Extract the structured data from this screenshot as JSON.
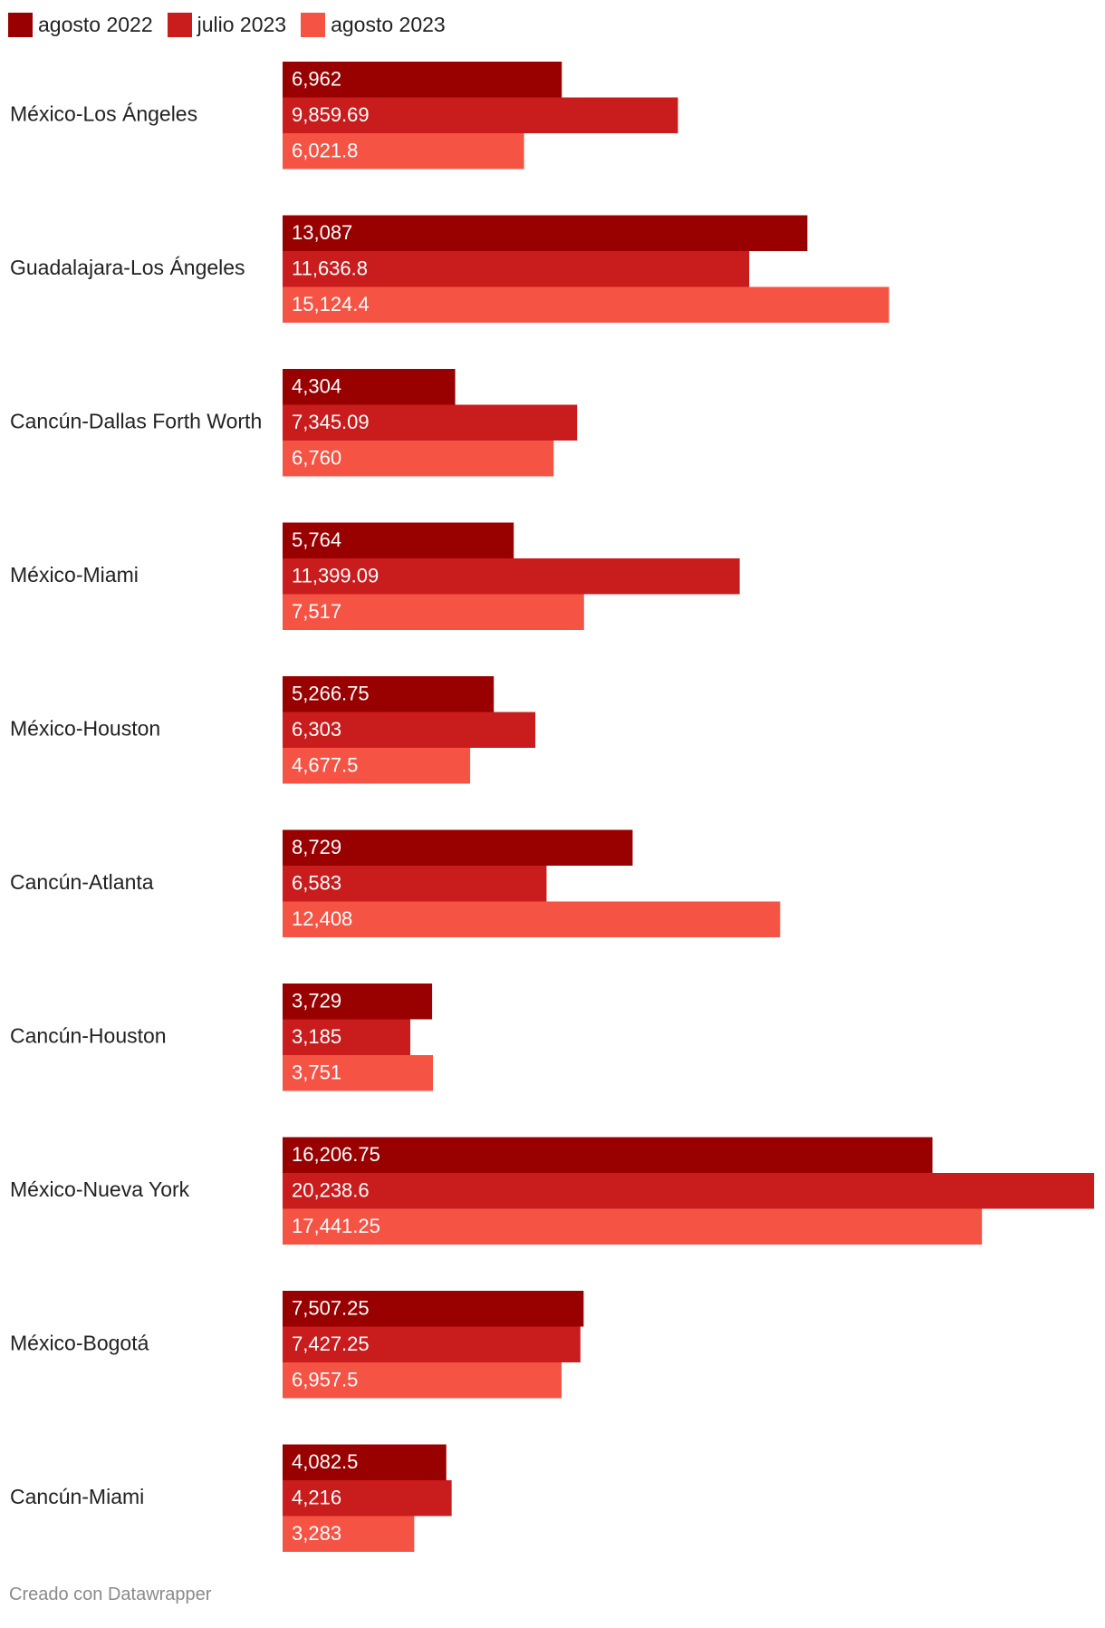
{
  "chart_data": {
    "type": "bar",
    "orientation": "horizontal",
    "categories": [
      "México-Los Ángeles",
      "Guadalajara-Los Ángeles",
      "Cancún-Dallas Forth Worth",
      "México-Miami",
      "México-Houston",
      "Cancún-Atlanta",
      "Cancún-Houston",
      "México-Nueva York",
      "México-Bogotá",
      "Cancún-Miami"
    ],
    "series": [
      {
        "name": "agosto 2022",
        "color": "#990000",
        "values": [
          6962,
          13087,
          4304,
          5764,
          5266.75,
          8729,
          3729,
          16206.75,
          7507.25,
          4082.5
        ],
        "labels": [
          "6,962",
          "13,087",
          "4,304",
          "5,764",
          "5,266.75",
          "8,729",
          "3,729",
          "16,206.75",
          "7,507.25",
          "4,082.5"
        ]
      },
      {
        "name": "julio 2023",
        "color": "#c91c1c",
        "values": [
          9859.69,
          11636.8,
          7345.09,
          11399.09,
          6303,
          6583,
          3185,
          20238.6,
          7427.25,
          4216
        ],
        "labels": [
          "9,859.69",
          "11,636.8",
          "7,345.09",
          "11,399.09",
          "6,303",
          "6,583",
          "3,185",
          "20,238.6",
          "7,427.25",
          "4,216"
        ]
      },
      {
        "name": "agosto 2023",
        "color": "#f55445",
        "values": [
          6021.8,
          15124.4,
          6760,
          7517,
          4677.5,
          12408,
          3751,
          17441.25,
          6957.5,
          3283
        ],
        "labels": [
          "6,021.8",
          "15,124.4",
          "6,760",
          "7,517",
          "4,677.5",
          "12,408",
          "3,751",
          "17,441.25",
          "6,957.5",
          "3,283"
        ]
      }
    ],
    "xlim": [
      0,
      20238.6
    ],
    "legend": "top-left",
    "grid": false
  },
  "footer": {
    "credit": "Creado con Datawrapper"
  }
}
